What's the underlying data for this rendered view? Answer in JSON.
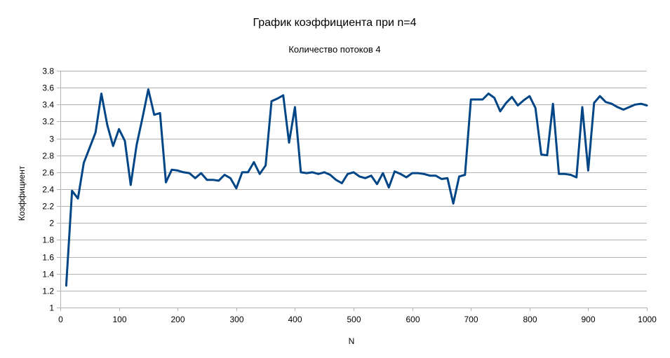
{
  "chart_data": {
    "type": "line",
    "title": "График коэффициента при n=4",
    "subtitle": "Количество потоков 4",
    "xlabel": "N",
    "ylabel": "Коэффициент",
    "xlim": [
      0,
      1000
    ],
    "ylim": [
      1,
      3.8
    ],
    "x_ticks": [
      "0",
      "100",
      "200",
      "300",
      "400",
      "500",
      "600",
      "700",
      "800",
      "900",
      "1000"
    ],
    "y_ticks": [
      "1",
      "1.2",
      "1.4",
      "1.6",
      "1.8",
      "2",
      "2.2",
      "2.4",
      "2.6",
      "2.8",
      "3",
      "3.2",
      "3.4",
      "3.6",
      "3.8"
    ],
    "grid": "horizontal",
    "legend": "none",
    "series": [
      {
        "color": "#004586",
        "x": [
          10,
          20,
          30,
          40,
          50,
          60,
          70,
          80,
          90,
          100,
          110,
          120,
          130,
          140,
          150,
          160,
          170,
          180,
          190,
          200,
          210,
          220,
          230,
          240,
          250,
          260,
          270,
          280,
          290,
          300,
          310,
          320,
          330,
          340,
          350,
          360,
          370,
          380,
          390,
          400,
          410,
          420,
          430,
          440,
          450,
          460,
          470,
          480,
          490,
          500,
          510,
          520,
          530,
          540,
          550,
          560,
          570,
          580,
          590,
          600,
          610,
          620,
          630,
          640,
          650,
          660,
          670,
          680,
          690,
          700,
          710,
          720,
          730,
          740,
          750,
          760,
          770,
          780,
          790,
          800,
          810,
          820,
          830,
          840,
          850,
          860,
          870,
          880,
          890,
          900,
          910,
          920,
          930,
          940,
          950,
          960,
          970,
          980,
          990,
          1000
        ],
        "values": [
          1.26,
          2.38,
          2.29,
          2.71,
          2.89,
          3.07,
          3.53,
          3.16,
          2.91,
          3.11,
          2.97,
          2.45,
          2.92,
          3.24,
          3.58,
          3.28,
          3.3,
          2.48,
          2.63,
          2.62,
          2.6,
          2.59,
          2.53,
          2.59,
          2.51,
          2.51,
          2.5,
          2.57,
          2.53,
          2.41,
          2.6,
          2.6,
          2.72,
          2.58,
          2.68,
          3.44,
          3.47,
          3.51,
          2.95,
          3.37,
          2.6,
          2.59,
          2.6,
          2.58,
          2.6,
          2.57,
          2.51,
          2.47,
          2.58,
          2.6,
          2.55,
          2.53,
          2.56,
          2.46,
          2.59,
          2.42,
          2.61,
          2.58,
          2.54,
          2.59,
          2.59,
          2.58,
          2.56,
          2.56,
          2.52,
          2.53,
          2.23,
          2.55,
          2.57,
          3.46,
          3.46,
          3.46,
          3.53,
          3.48,
          3.32,
          3.42,
          3.49,
          3.39,
          3.45,
          3.5,
          3.36,
          2.81,
          2.8,
          3.41,
          2.58,
          2.58,
          2.57,
          2.54,
          3.37,
          2.62,
          3.42,
          3.5,
          3.43,
          3.41,
          3.37,
          3.34,
          3.37,
          3.4,
          3.41,
          3.39
        ]
      }
    ]
  }
}
